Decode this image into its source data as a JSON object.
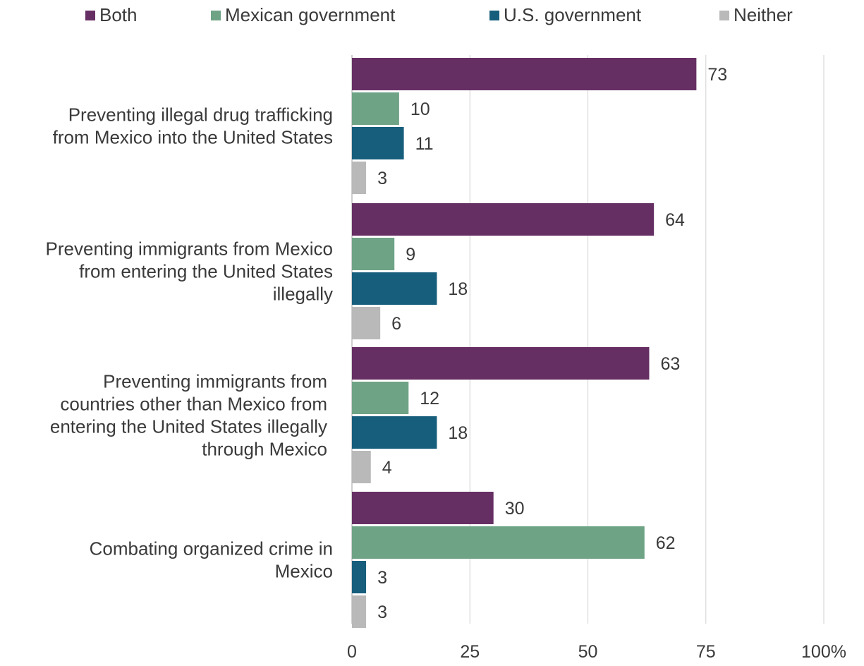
{
  "chart_data": {
    "type": "bar",
    "orientation": "horizontal",
    "categories": [
      [
        "Preventing illegal drug trafficking",
        "from Mexico into the United States"
      ],
      [
        "Preventing immigrants from Mexico",
        "from entering the United States",
        "illegally"
      ],
      [
        "Preventing immigrants from",
        "countries other than Mexico from",
        "entering the United States illegally",
        "through Mexico"
      ],
      [
        "Combating organized crime in",
        "Mexico"
      ]
    ],
    "series": [
      {
        "name": "Both",
        "color": "#662f63",
        "values": [
          73,
          64,
          63,
          30
        ]
      },
      {
        "name": "Mexican government",
        "color": "#6fa386",
        "values": [
          10,
          9,
          12,
          62
        ]
      },
      {
        "name": "U.S. government",
        "color": "#165e7c",
        "values": [
          11,
          18,
          18,
          3
        ]
      },
      {
        "name": "Neither",
        "color": "#b9b9b9",
        "values": [
          3,
          6,
          4,
          3
        ]
      }
    ],
    "xlim": [
      0,
      100
    ],
    "xticks": [
      "0",
      "25",
      "50",
      "75",
      "100%"
    ],
    "xtick_values": [
      0,
      25,
      50,
      75,
      100
    ],
    "grid": true,
    "legend_position": "top"
  }
}
